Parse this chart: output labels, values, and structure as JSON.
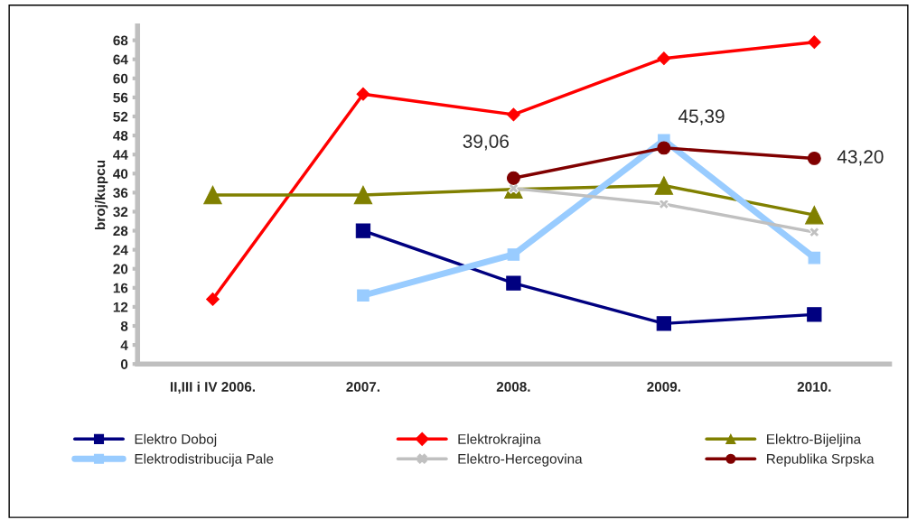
{
  "chart_data": {
    "type": "line",
    "ylabel": "broj/kupcu",
    "categories": [
      "II,III i IV 2006.",
      "2007.",
      "2008.",
      "2009.",
      "2010."
    ],
    "series": [
      {
        "name": "Elektro Doboj",
        "color": "#000080",
        "marker": "square",
        "values": [
          null,
          28,
          17,
          8.5,
          10.4
        ]
      },
      {
        "name": "Elektrokrajina",
        "color": "#ff0000",
        "marker": "diamond",
        "values": [
          13.6,
          56.7,
          52.4,
          64.2,
          67.6
        ]
      },
      {
        "name": "Elektro-Bijeljina",
        "color": "#808000",
        "marker": "triangle",
        "values": [
          35.5,
          35.5,
          36.7,
          37.5,
          31.3
        ]
      },
      {
        "name": "Elektrodistribucija Pale",
        "color": "#99ccff",
        "marker": "square",
        "values": [
          null,
          14.4,
          23,
          47,
          22.3
        ]
      },
      {
        "name": "Elektro-Hercegovina",
        "color": "#c0c0c0",
        "marker": "cross",
        "values": [
          null,
          null,
          36.9,
          33.6,
          27.7
        ]
      },
      {
        "name": "Republika Srpska",
        "color": "#800000",
        "marker": "circle",
        "values": [
          null,
          null,
          39.06,
          45.39,
          43.2
        ],
        "value_labels": [
          null,
          null,
          "39,06",
          "45,39",
          "43,20"
        ]
      }
    ],
    "ylim": [
      0,
      71
    ],
    "yticks": [
      0,
      4,
      8,
      12,
      16,
      20,
      24,
      28,
      32,
      36,
      40,
      44,
      48,
      52,
      56,
      60,
      64,
      68
    ],
    "grid": false,
    "legend": "bottom"
  }
}
